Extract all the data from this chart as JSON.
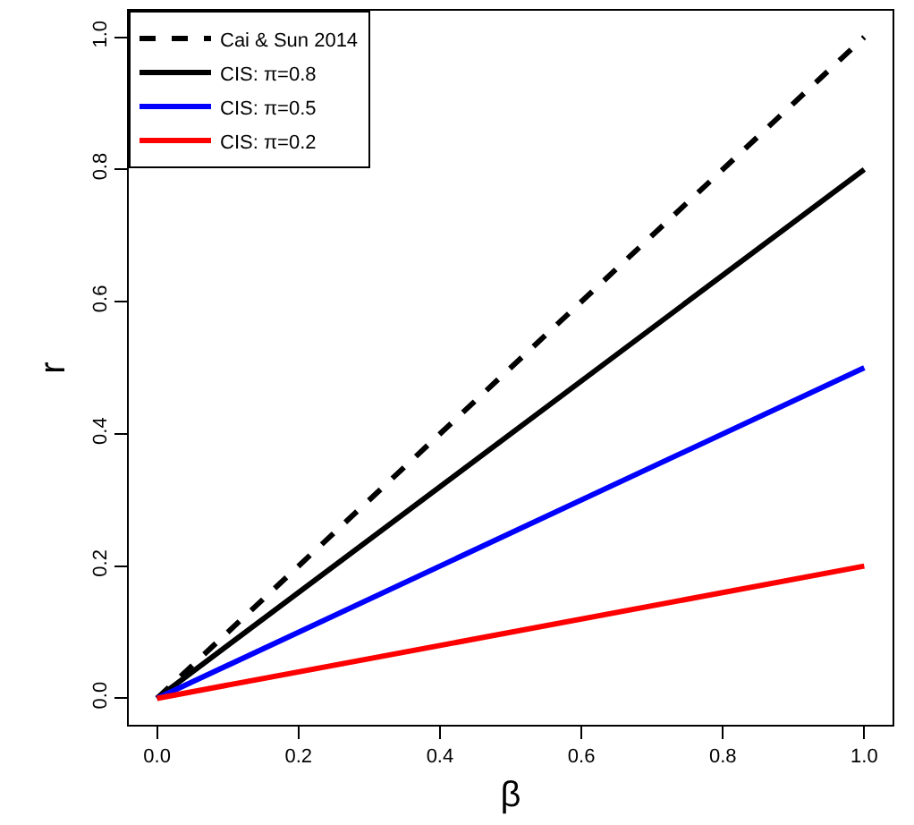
{
  "chart_data": {
    "type": "line",
    "xlabel": "β",
    "ylabel": "r",
    "xlim": [
      -0.04,
      1.04
    ],
    "ylim": [
      -0.04,
      1.04
    ],
    "xticks": [
      {
        "value": 0,
        "label": "0.0"
      },
      {
        "value": 0.2,
        "label": "0.2"
      },
      {
        "value": 0.4,
        "label": "0.4"
      },
      {
        "value": 0.6,
        "label": "0.6"
      },
      {
        "value": 0.8,
        "label": "0.8"
      },
      {
        "value": 1.0,
        "label": "1.0"
      }
    ],
    "yticks": [
      {
        "value": 0,
        "label": "0.0"
      },
      {
        "value": 0.2,
        "label": "0.2"
      },
      {
        "value": 0.4,
        "label": "0.4"
      },
      {
        "value": 0.6,
        "label": "0.6"
      },
      {
        "value": 0.8,
        "label": "0.8"
      },
      {
        "value": 1.0,
        "label": "1.0"
      }
    ],
    "x": [
      0,
      1
    ],
    "legend": "top left",
    "marker": "none",
    "series": [
      {
        "name": "Cai & Sun 2014",
        "color": "#000000",
        "values": [
          0,
          1
        ],
        "line_style": "dashed"
      },
      {
        "name": "CIS: π=0.8",
        "color": "#000000",
        "values": [
          0,
          0.8
        ],
        "line_style": "solid"
      },
      {
        "name": "CIS: π=0.5",
        "color": "#0000ff",
        "values": [
          0,
          0.5
        ],
        "line_style": "solid"
      },
      {
        "name": "CIS: π=0.2",
        "color": "#ff0000",
        "values": [
          0,
          0.2
        ],
        "line_style": "solid"
      }
    ]
  }
}
